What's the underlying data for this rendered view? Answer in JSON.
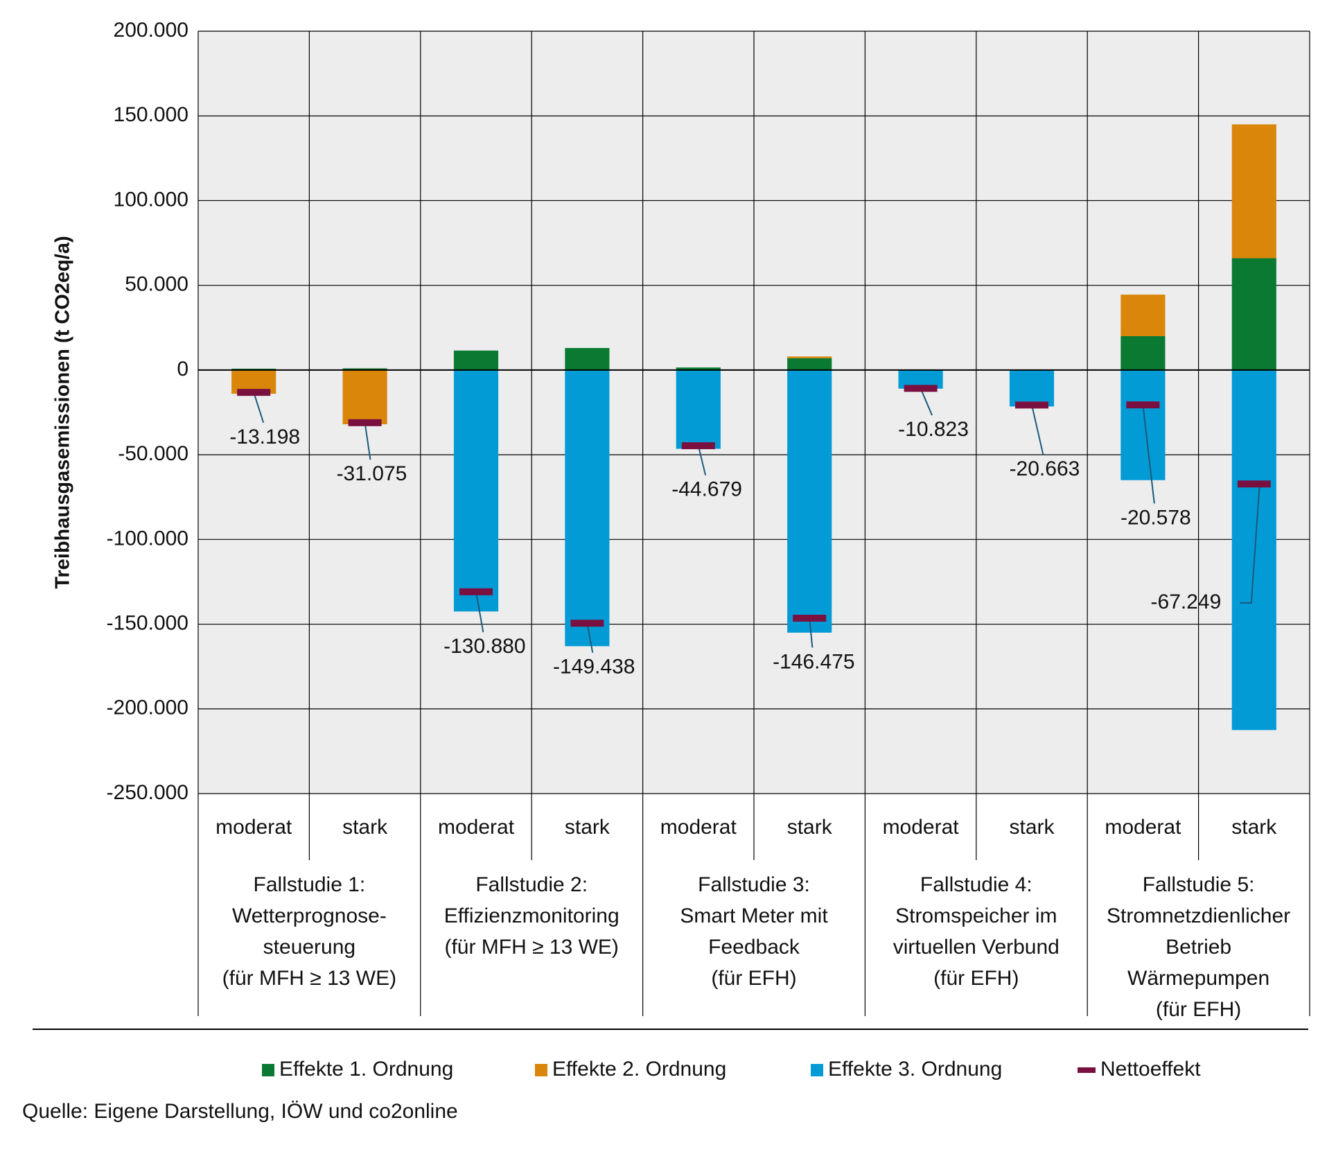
{
  "chart_data": {
    "type": "stacked_bar",
    "y_label": "Treibhausgasemissionen (t CO2eq/a)",
    "categories": [
      "moderat",
      "stark",
      "moderat",
      "stark",
      "moderat",
      "stark",
      "moderat",
      "stark",
      "moderat",
      "stark"
    ],
    "groups": [
      [
        "Fallstudie 1:",
        "Wetterprognose-",
        "steuerung",
        "(für MFH ≥ 13 WE)"
      ],
      [
        "Fallstudie 2:",
        "Effizienzmonitoring",
        "(für MFH ≥ 13 WE)"
      ],
      [
        "Fallstudie 3:",
        "Smart Meter mit",
        "Feedback",
        "(für EFH)"
      ],
      [
        "Fallstudie 4:",
        "Stromspeicher im",
        "virtuellen Verbund",
        "(für EFH)"
      ],
      [
        "Fallstudie 5:",
        "Stromnetzdienlicher",
        "Betrieb",
        "Wärmepumpen",
        "(für EFH)"
      ]
    ],
    "series": [
      {
        "name": "Effekte 1. Ordnung",
        "color": "#0a7a32",
        "values": [
          800,
          1000,
          11500,
          13000,
          1500,
          7000,
          0,
          0,
          20000,
          66000
        ]
      },
      {
        "name": "Effekte 2. Ordnung",
        "color": "#d9860b",
        "values": [
          -14000,
          -32000,
          0,
          0,
          0,
          1000,
          0,
          0,
          24500,
          79000
        ]
      },
      {
        "name": "Effekte 3. Ordnung",
        "color": "#029bd6",
        "values": [
          0,
          0,
          -142500,
          -163000,
          -46500,
          -155000,
          -11000,
          -21500,
          -65000,
          -212500
        ]
      }
    ],
    "net": {
      "name": "Nettoeffekt",
      "color": "#7a1040",
      "values": [
        -13198,
        -31075,
        -130880,
        -149438,
        -44679,
        -146475,
        -10823,
        -20663,
        -20578,
        -67249
      ],
      "value_labels": [
        "-13.198",
        "-31.075",
        "-130.880",
        "-149.438",
        "-44.679",
        "-146.475",
        "-10.823",
        "-20.663",
        "-20.578",
        "-67.249"
      ]
    },
    "ylim": [
      -250000,
      200000
    ],
    "yticks": [
      {
        "value": -250000,
        "label": "-250.000"
      },
      {
        "value": -200000,
        "label": "-200.000"
      },
      {
        "value": -150000,
        "label": "-150.000"
      },
      {
        "value": -100000,
        "label": "-100.000"
      },
      {
        "value": -50000,
        "label": "-50.000"
      },
      0,
      {
        "value": 50000,
        "label": "50.000"
      },
      {
        "value": 100000,
        "label": "100.000"
      },
      {
        "value": 150000,
        "label": "150.000"
      },
      {
        "value": 200000,
        "label": "200.000"
      }
    ],
    "grid": true,
    "legend": "bottom",
    "source": "Quelle: Eigene Darstellung, IÖW und co2online"
  }
}
